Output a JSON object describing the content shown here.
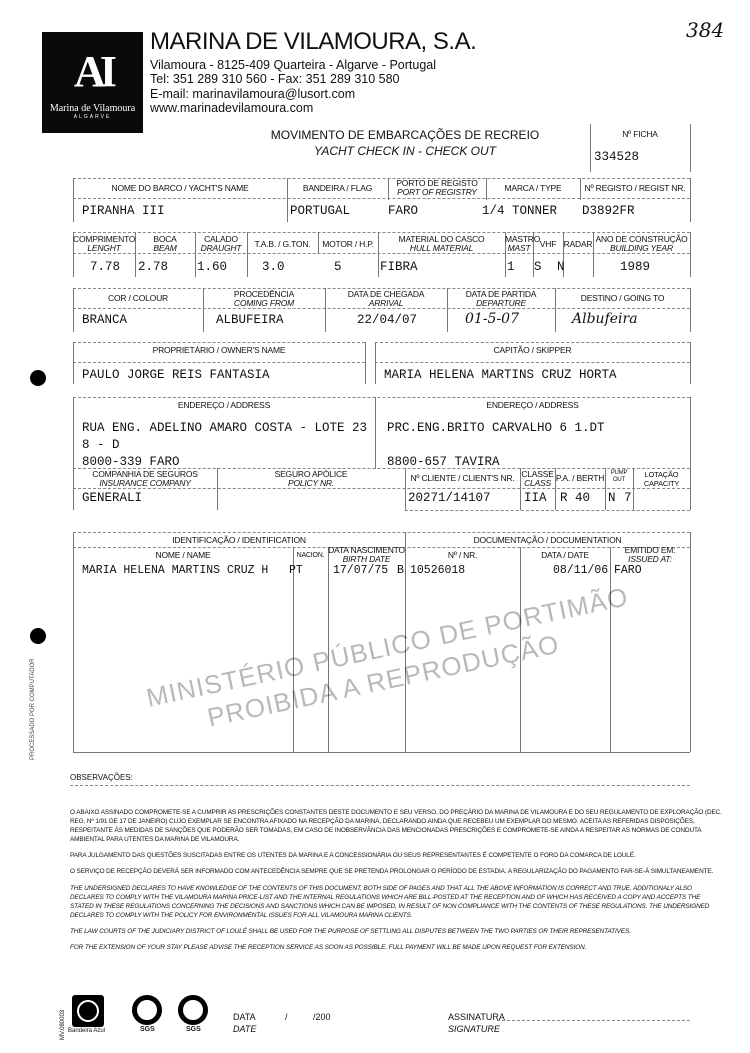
{
  "header": {
    "company": "MARINA DE VILAMOURA, S.A.",
    "address": "Vilamoura - 8125-409 Quarteira - Algarve - Portugal",
    "phone": "Tel: 351 289 310 560 - Fax: 351 289 310 580",
    "email": "E-mail: marinavilamoura@lusort.com",
    "web": "www.marinadevilamoura.com",
    "logo_text": "Marina de Vilamoura",
    "logo_region": "ALGARVE",
    "page_mark": "384"
  },
  "form": {
    "title": "MOVIMENTO DE EMBARCAÇÕES DE RECREIO",
    "subtitle": "YACHT CHECK IN - CHECK OUT",
    "ficha_label": "Nº FICHA",
    "ficha": "334528"
  },
  "row1": {
    "name_l": "NOME DO BARCO / YACHT'S NAME",
    "name": "PIRANHA III",
    "flag_l": "BANDEIRA / FLAG",
    "flag": "PORTUGAL",
    "port_l1": "PORTO DE REGISTO",
    "port_l2": "PORT OF REGISTRY",
    "port": "FARO",
    "type_l": "MARCA / TYPE",
    "type": "1/4 TONNER",
    "reg_l": "Nº REGISTO / REGIST NR.",
    "reg": "D3892FR"
  },
  "row2": {
    "len_l1": "COMPRIMENTO",
    "len_l2": "LENGHT",
    "len": "7.78",
    "beam_l1": "BOCA",
    "beam_l2": "BEAM",
    "beam": "2.78",
    "draught_l1": "CALADO",
    "draught_l2": "DRAUGHT",
    "draught": "1.60",
    "tab_l": "T.A.B. / G.TON.",
    "tab": "3.0",
    "motor_l": "MOTOR / H.P.",
    "motor": "5",
    "hull_l1": "MATERIAL DO CASCO",
    "hull_l2": "HULL MATERIAL",
    "hull": "FIBRA",
    "mast_l1": "MASTRO",
    "mast_l2": "MAST",
    "mast": "1",
    "vhf_l": "VHF",
    "vhf": "S",
    "radar_l": "RADAR",
    "radar": "N",
    "year_l1": "ANO DE CONSTRUÇÃO",
    "year_l2": "BUILDING YEAR",
    "year": "1989"
  },
  "row3": {
    "colour_l": "COR / COLOUR",
    "colour": "BRANCA",
    "from_l1": "PROCEDÊNCIA",
    "from_l2": "COMING FROM",
    "from": "ALBUFEIRA",
    "arr_l1": "DATA DE CHEGADA",
    "arr_l2": "ARRIVAL",
    "arr": "22/04/07",
    "dep_l1": "DATA DE PARTIDA",
    "dep_l2": "DEPARTURE",
    "dep": "01-5-07",
    "dest_l": "DESTINO / GOING TO",
    "dest": "Albufeira"
  },
  "row4": {
    "owner_l": "PROPRIETÁRIO / OWNER'S NAME",
    "owner": "PAULO JORGE REIS FANTASIA",
    "skipper_l": "CAPITÃO / SKIPPER",
    "skipper": "MARIA HELENA MARTINS CRUZ HORTA"
  },
  "row5": {
    "addr_l": "ENDEREÇO / ADDRESS",
    "owner_addr": [
      "RUA ENG. ADELINO AMARO COSTA - LOTE 23",
      "8 - D",
      "8000-339  FARO"
    ],
    "skipper_addr": [
      "PRC.ENG.BRITO CARVALHO 6 1.DT",
      "",
      "8800-657 TAVIRA"
    ]
  },
  "row6": {
    "ins_l1": "COMPANHIA DE SEGUROS",
    "ins_l2": "INSURANCE COMPANY",
    "ins": "GENERALI",
    "pol_l1": "SEGURO APÓLICE",
    "pol_l2": "POLICY NR.",
    "client_l": "Nº CLIENTE / CLIENT'S NR.",
    "client": "20271/14107",
    "class_l1": "CLASSE",
    "class_l2": "CLASS",
    "class": "IIA",
    "berth_l": "P.A. / BERTH",
    "berth": "R 40",
    "pump_l": "PUMP OUT",
    "pump": "N",
    "cap_l": "LOTAÇÃO CAPACITY",
    "cap": "7"
  },
  "row7": {
    "id_l": "IDENTIFICAÇÃO / IDENTIFICATION",
    "doc_l": "DOCUMENTAÇÃO / DOCUMENTATION",
    "name_l": "NOME / NAME",
    "name": "MARIA HELENA MARTINS CRUZ H",
    "nat_l": "NACION.",
    "nat": "PT",
    "birth_l1": "DATA NASCIMENTO",
    "birth_l2": "BIRTH DATE",
    "birth": "17/07/75",
    "doctype": "B",
    "nr_l": "Nº / NR.",
    "nr": "10526018",
    "date_l": "DATA / DATE",
    "date": "08/11/06",
    "issued_l1": "EMITIDO EM:",
    "issued_l2": "ISSUED AT:",
    "issued": "FARO"
  },
  "obs_label": "OBSERVAÇÕES:",
  "side_text": "PROCESSADO POR COMPUTADOR",
  "watermark": [
    "MINISTÉRIO PÚBLICO DE PORTIMÃO",
    "PROIBIDA A REPRODUÇÃO"
  ],
  "terms": [
    "O ABAIXO ASSINADO COMPROMETE-SE A CUMPRIR AS PRESCRIÇÕES CONSTANTES DESTE DOCUMENTO E SEU VERSO, DO PREÇÁRIO DA MARINA DE VILAMOURA E DO SEU REGULAMENTO DE EXPLORAÇÃO (DEC. REG. Nº 1/91 DE 17 DE JANEIRO) CUJO EXEMPLAR SE ENCONTRA AFIXADO NA RECEPÇÃO DA MARINA, DECLARANDO AINDA QUE RECEBEU UM EXEMPLAR DO MESMO. ACEITA AS REFERIDAS DISPOSIÇÕES, RESPEITANTE ÀS MEDIDAS DE SANÇÕES QUE PODERÃO SER TOMADAS, EM CASO DE INOBSERVÂNCIA DAS MENCIONADAS PRESCRIÇÕES E COMPROMETE-SE AINDA A RESPEITAR AS NORMAS DE CONDUTA AMBIENTAL PARA UTENTES DA MARINA DE VILAMOURA.",
    "PARA JULGAMENTO DAS QUESTÕES SUSCITADAS ENTRE OS UTENTES DA MARINA E A CONCESSIONÁRIA OU SEUS REPRESENTANTES É COMPETENTE O FORO DA COMARCA DE LOULÉ.",
    "O SERVIÇO DE RECEPÇÃO DEVERÁ SER INFORMADO COM ANTECEDÊNCIA SEMPRE QUE SE PRETENDA PROLONGAR O PERÍODO DE ESTADIA. A REGULARIZAÇÃO DO PAGAMENTO FAR-SE-Á SIMULTANEAMENTE.",
    "THE UNDERSIGNED DECLARES TO HAVE KNOWLEDGE OF THE CONTENTS OF THIS DOCUMENT, BOTH SIDE OF PAGES AND THAT ALL THE ABOVE INFORMATION IS CORRECT AND TRUE. ADDITIONALY ALSO DECLARES TO COMPLY WITH THE VILAMOURA MARINA PRICE-LIST AND THE INTERNAL REGULATIONS WHICH ARE BILL-POSTED AT THE RECEPTION AND OF WHICH HAS RECEIVED A COPY AND ACCEPTS THE STATED IN THESE REGULATIONS CONCERNING THE DECISIONS AND SANCTIONS WHICH CAN BE IMPOSED, IN RESULT OF NON COMPLIANCE WITH THE CONTENTS OF THESE REGULATIONS. THE UNDERSIGNED DECLARES TO COMPLY WITH THE POLICY FOR ENVIRONMENTAL ISSUES FOR ALL VILAMOURA MARINA CLIENTS.",
    "THE LAW COURTS OF THE JUDICIARY DISTRICT OF LOULÉ SHALL BE USED FOR THE PURPOSE OF SETTLING ALL DISPUTES BETWEEN THE TWO PARTIES OR THEIR REPRESENTATIVES.",
    "FOR THE EXTENSION OF YOUR STAY PLEASE ADVISE THE RECEPTION SERVICE AS SOON AS POSSIBLE. FULL PAYMENT WILL BE MADE UPON REQUEST FOR EXTENSION."
  ],
  "footer": {
    "form_code": "MV.080003",
    "blue_flag": "Bandeira Azul",
    "sgs": "SGS",
    "date_l1": "DATA",
    "date_l2": "DATE",
    "date_slash": "/",
    "date_year": "/200",
    "sig_l1": "ASSINATURA",
    "sig_l2": "SIGNATURE"
  }
}
